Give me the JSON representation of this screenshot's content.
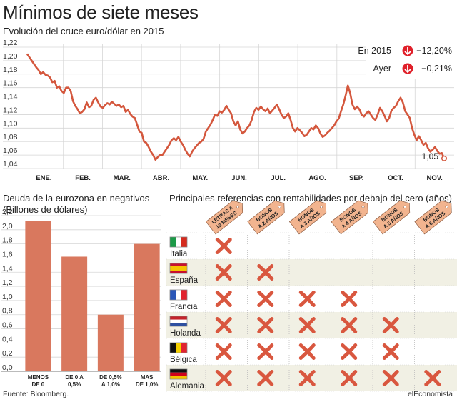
{
  "header": {
    "title": "Mínimos de siete meses",
    "subtitle": "Evolución del cruce euro/dólar en 2015"
  },
  "chart_data": [
    {
      "type": "line",
      "title": "Evolución del cruce euro/dólar en 2015",
      "y_ticks": [
        "1,22",
        "1,20",
        "1,18",
        "1,16",
        "1,14",
        "1,12",
        "1,10",
        "1,08",
        "1,06",
        "1,04"
      ],
      "ylim": [
        1.04,
        1.22
      ],
      "x_ticks": [
        "ENE.",
        "FEB.",
        "MAR.",
        "ABR.",
        "MAY.",
        "JUN.",
        "JUL.",
        "AGO.",
        "SEP.",
        "OCT.",
        "NOV."
      ],
      "series": [
        {
          "values": [
            1.21,
            1.205,
            1.2,
            1.195,
            1.19,
            1.186,
            1.18,
            1.183,
            1.179,
            1.178,
            1.175,
            1.168,
            1.17,
            1.16,
            1.162,
            1.155,
            1.152,
            1.16,
            1.16,
            1.155,
            1.14,
            1.133,
            1.128,
            1.122,
            1.124,
            1.128,
            1.138,
            1.131,
            1.133,
            1.142,
            1.145,
            1.138,
            1.132,
            1.13,
            1.134,
            1.137,
            1.135,
            1.139,
            1.136,
            1.133,
            1.135,
            1.131,
            1.133,
            1.124,
            1.127,
            1.121,
            1.117,
            1.115,
            1.105,
            1.095,
            1.093,
            1.08,
            1.078,
            1.072,
            1.065,
            1.06,
            1.053,
            1.057,
            1.06,
            1.06,
            1.065,
            1.07,
            1.075,
            1.082,
            1.085,
            1.082,
            1.087,
            1.08,
            1.075,
            1.068,
            1.062,
            1.058,
            1.065,
            1.07,
            1.074,
            1.078,
            1.08,
            1.084,
            1.095,
            1.1,
            1.105,
            1.112,
            1.12,
            1.118,
            1.125,
            1.123,
            1.127,
            1.133,
            1.127,
            1.122,
            1.11,
            1.104,
            1.11,
            1.098,
            1.092,
            1.095,
            1.1,
            1.104,
            1.112,
            1.124,
            1.13,
            1.127,
            1.132,
            1.128,
            1.125,
            1.129,
            1.122,
            1.126,
            1.13,
            1.135,
            1.128,
            1.12,
            1.115,
            1.117,
            1.122,
            1.112,
            1.1,
            1.095,
            1.1,
            1.097,
            1.093,
            1.088,
            1.09,
            1.095,
            1.1,
            1.098,
            1.104,
            1.1,
            1.092,
            1.087,
            1.089,
            1.093,
            1.096,
            1.1,
            1.104,
            1.11,
            1.114,
            1.125,
            1.135,
            1.148,
            1.163,
            1.152,
            1.135,
            1.128,
            1.132,
            1.128,
            1.12,
            1.117,
            1.122,
            1.125,
            1.12,
            1.115,
            1.112,
            1.12,
            1.13,
            1.125,
            1.118,
            1.11,
            1.115,
            1.126,
            1.13,
            1.133,
            1.14,
            1.145,
            1.138,
            1.125,
            1.12,
            1.115,
            1.1,
            1.09,
            1.082,
            1.088,
            1.082,
            1.075,
            1.078,
            1.07,
            1.065,
            1.068,
            1.072,
            1.066,
            1.062,
            1.063,
            1.055
          ],
          "last_value": "1,05"
        }
      ],
      "annotations": [
        {
          "label": "En 2015",
          "value": "−12,20%"
        },
        {
          "label": "Ayer",
          "value": "−0,21%"
        }
      ]
    },
    {
      "type": "bar",
      "title": "Deuda de la eurozona en negativos (Billones de dólares)",
      "categories": [
        [
          "MENOS",
          "DE 0"
        ],
        [
          "DE 0 A",
          "0,5%"
        ],
        [
          "DE 0,5%",
          "A 1,0%"
        ],
        [
          "MAS",
          "DE 1,0%"
        ]
      ],
      "values": [
        2.12,
        1.62,
        0.8,
        1.8
      ],
      "ylim": [
        0,
        2.2
      ],
      "y_ticks": [
        "2,2",
        "2,0",
        "1,8",
        "1,6",
        "1,4",
        "1,2",
        "1,0",
        "0,8",
        "0,6",
        "0,4",
        "0,2",
        "0,0"
      ]
    },
    {
      "type": "table",
      "title": "Principales referencias con rentabilidades por debajo del cero (años)",
      "columns": [
        [
          "LETRAS A",
          "12 MESES"
        ],
        [
          "BONOS",
          "A 2 AÑOS"
        ],
        [
          "BONOS",
          "A 3 AÑOS"
        ],
        [
          "BONOS",
          "A 4 AÑOS"
        ],
        [
          "BONOS",
          "A 5 AÑOS"
        ],
        [
          "BONOS",
          "A 6 AÑOS"
        ]
      ],
      "rows": [
        {
          "country": "Italia",
          "marks": [
            true,
            false,
            false,
            false,
            false,
            false
          ]
        },
        {
          "country": "España",
          "marks": [
            true,
            true,
            false,
            false,
            false,
            false
          ]
        },
        {
          "country": "Francia",
          "marks": [
            true,
            true,
            true,
            true,
            false,
            false
          ]
        },
        {
          "country": "Holanda",
          "marks": [
            true,
            true,
            true,
            true,
            true,
            false
          ]
        },
        {
          "country": "Bélgica",
          "marks": [
            true,
            true,
            true,
            true,
            true,
            false
          ]
        },
        {
          "country": "Alemania",
          "marks": [
            true,
            true,
            true,
            true,
            true,
            true
          ]
        }
      ]
    }
  ],
  "sections": {
    "debt_title_line1": "Deuda de la eurozona en negativos",
    "debt_title_line2": "(Billones de dólares)",
    "bonds_title": "Principales referencias con rentabilidades por debajo del cero (años)"
  },
  "footer": {
    "source": "Fuente: Bloomberg.",
    "brand": "elEconomista"
  },
  "colors": {
    "line": "#d4573d",
    "bar": "#d9785e",
    "mark": "#d9573f",
    "tag": "#f2b48f",
    "band": "#f1f0e4",
    "down_circle": "#e0202a"
  }
}
